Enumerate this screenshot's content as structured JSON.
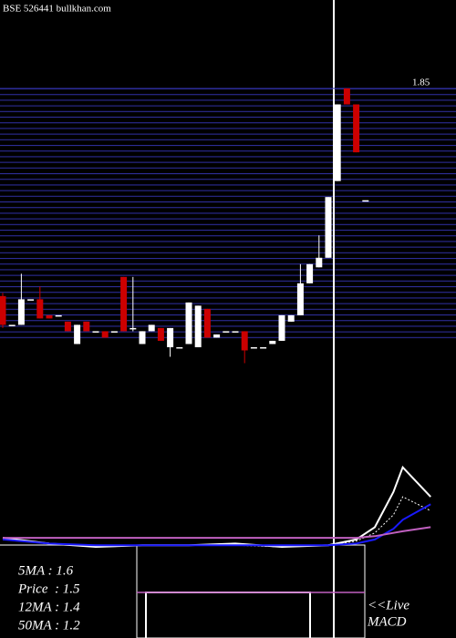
{
  "chart_data": [
    {
      "type": "candlestick",
      "title": "BSE 526441 bullkhan.com",
      "open": [
        1.2,
        1.11,
        1.11,
        1.19,
        1.19,
        1.14,
        1.14,
        1.12,
        1.05,
        1.12,
        1.09,
        1.09,
        1.09,
        1.26,
        1.1,
        1.05,
        1.09,
        1.1,
        1.04,
        1.04,
        1.05,
        1.04,
        1.16,
        1.07,
        1.09,
        1.09,
        1.09,
        1.04,
        1.04,
        1.05,
        1.06,
        1.12,
        1.14,
        1.24,
        1.29,
        1.32,
        1.56,
        1.85,
        1.8,
        1.5
      ],
      "high": [
        1.21,
        1.11,
        1.27,
        1.19,
        1.23,
        1.14,
        1.14,
        1.12,
        1.11,
        1.12,
        1.09,
        1.09,
        1.09,
        1.26,
        1.26,
        1.09,
        1.11,
        1.1,
        1.1,
        1.04,
        1.18,
        1.17,
        1.16,
        1.08,
        1.09,
        1.09,
        1.09,
        1.04,
        1.04,
        1.06,
        1.14,
        1.14,
        1.3,
        1.3,
        1.39,
        1.51,
        1.8,
        1.85,
        1.8,
        1.5
      ],
      "low": [
        1.1,
        1.11,
        1.11,
        1.19,
        1.13,
        1.13,
        1.14,
        1.09,
        1.05,
        1.09,
        1.09,
        1.07,
        1.09,
        1.09,
        1.09,
        1.05,
        1.09,
        1.06,
        1.01,
        1.04,
        1.05,
        1.04,
        1.07,
        1.07,
        1.09,
        1.09,
        0.99,
        1.04,
        1.04,
        1.05,
        1.06,
        1.12,
        1.14,
        1.24,
        1.29,
        1.32,
        1.56,
        1.8,
        1.65,
        1.5
      ],
      "close": [
        1.11,
        1.11,
        1.19,
        1.19,
        1.13,
        1.13,
        1.14,
        1.09,
        1.11,
        1.09,
        1.09,
        1.07,
        1.09,
        1.09,
        1.1,
        1.09,
        1.11,
        1.06,
        1.1,
        1.04,
        1.18,
        1.17,
        1.07,
        1.08,
        1.09,
        1.09,
        1.03,
        1.04,
        1.04,
        1.06,
        1.14,
        1.14,
        1.24,
        1.3,
        1.32,
        1.51,
        1.8,
        1.8,
        1.65,
        1.5
      ],
      "up_color": "#ffffff",
      "down_color": "#cc0000",
      "ylim": [
        0.95,
        1.85
      ],
      "yticks": [
        1.85
      ],
      "grid": true,
      "annotations": [
        "5MA : 1.6",
        "Price  : 1.5",
        "12MA : 1.4",
        "50MA : 1.2",
        "<<Live",
        "MACD"
      ]
    },
    {
      "type": "line",
      "x": [
        0,
        5,
        10,
        15,
        20,
        25,
        30,
        35,
        38,
        40,
        42,
        43,
        46
      ],
      "xlim": [
        0,
        48
      ],
      "ylim": [
        0,
        1
      ],
      "series": [
        {
          "color": "#ffffff",
          "style": "solid",
          "values": [
            0.11,
            0.04,
            0,
            0.02,
            0.02,
            0.04,
            0,
            0.02,
            0.09,
            0.24,
            0.67,
            0.97,
            0.61
          ]
        },
        {
          "color": "#ffffff",
          "style": "dotted",
          "values": [
            0.11,
            0.04,
            0,
            0.02,
            0.02,
            0.02,
            0,
            0.02,
            0.07,
            0.17,
            0.39,
            0.61,
            0.44
          ]
        },
        {
          "color": "#1a1aff",
          "style": "solid",
          "values": [
            0.09,
            0.04,
            0.02,
            0.02,
            0.02,
            0.02,
            0.02,
            0.02,
            0.04,
            0.09,
            0.22,
            0.33,
            0.52
          ]
        },
        {
          "color": "#c060c0",
          "style": "solid",
          "values": [
            0.11,
            0.11,
            0.11,
            0.11,
            0.11,
            0.11,
            0.11,
            0.11,
            0.11,
            0.13,
            0.17,
            0.19,
            0.24
          ]
        }
      ]
    }
  ]
}
